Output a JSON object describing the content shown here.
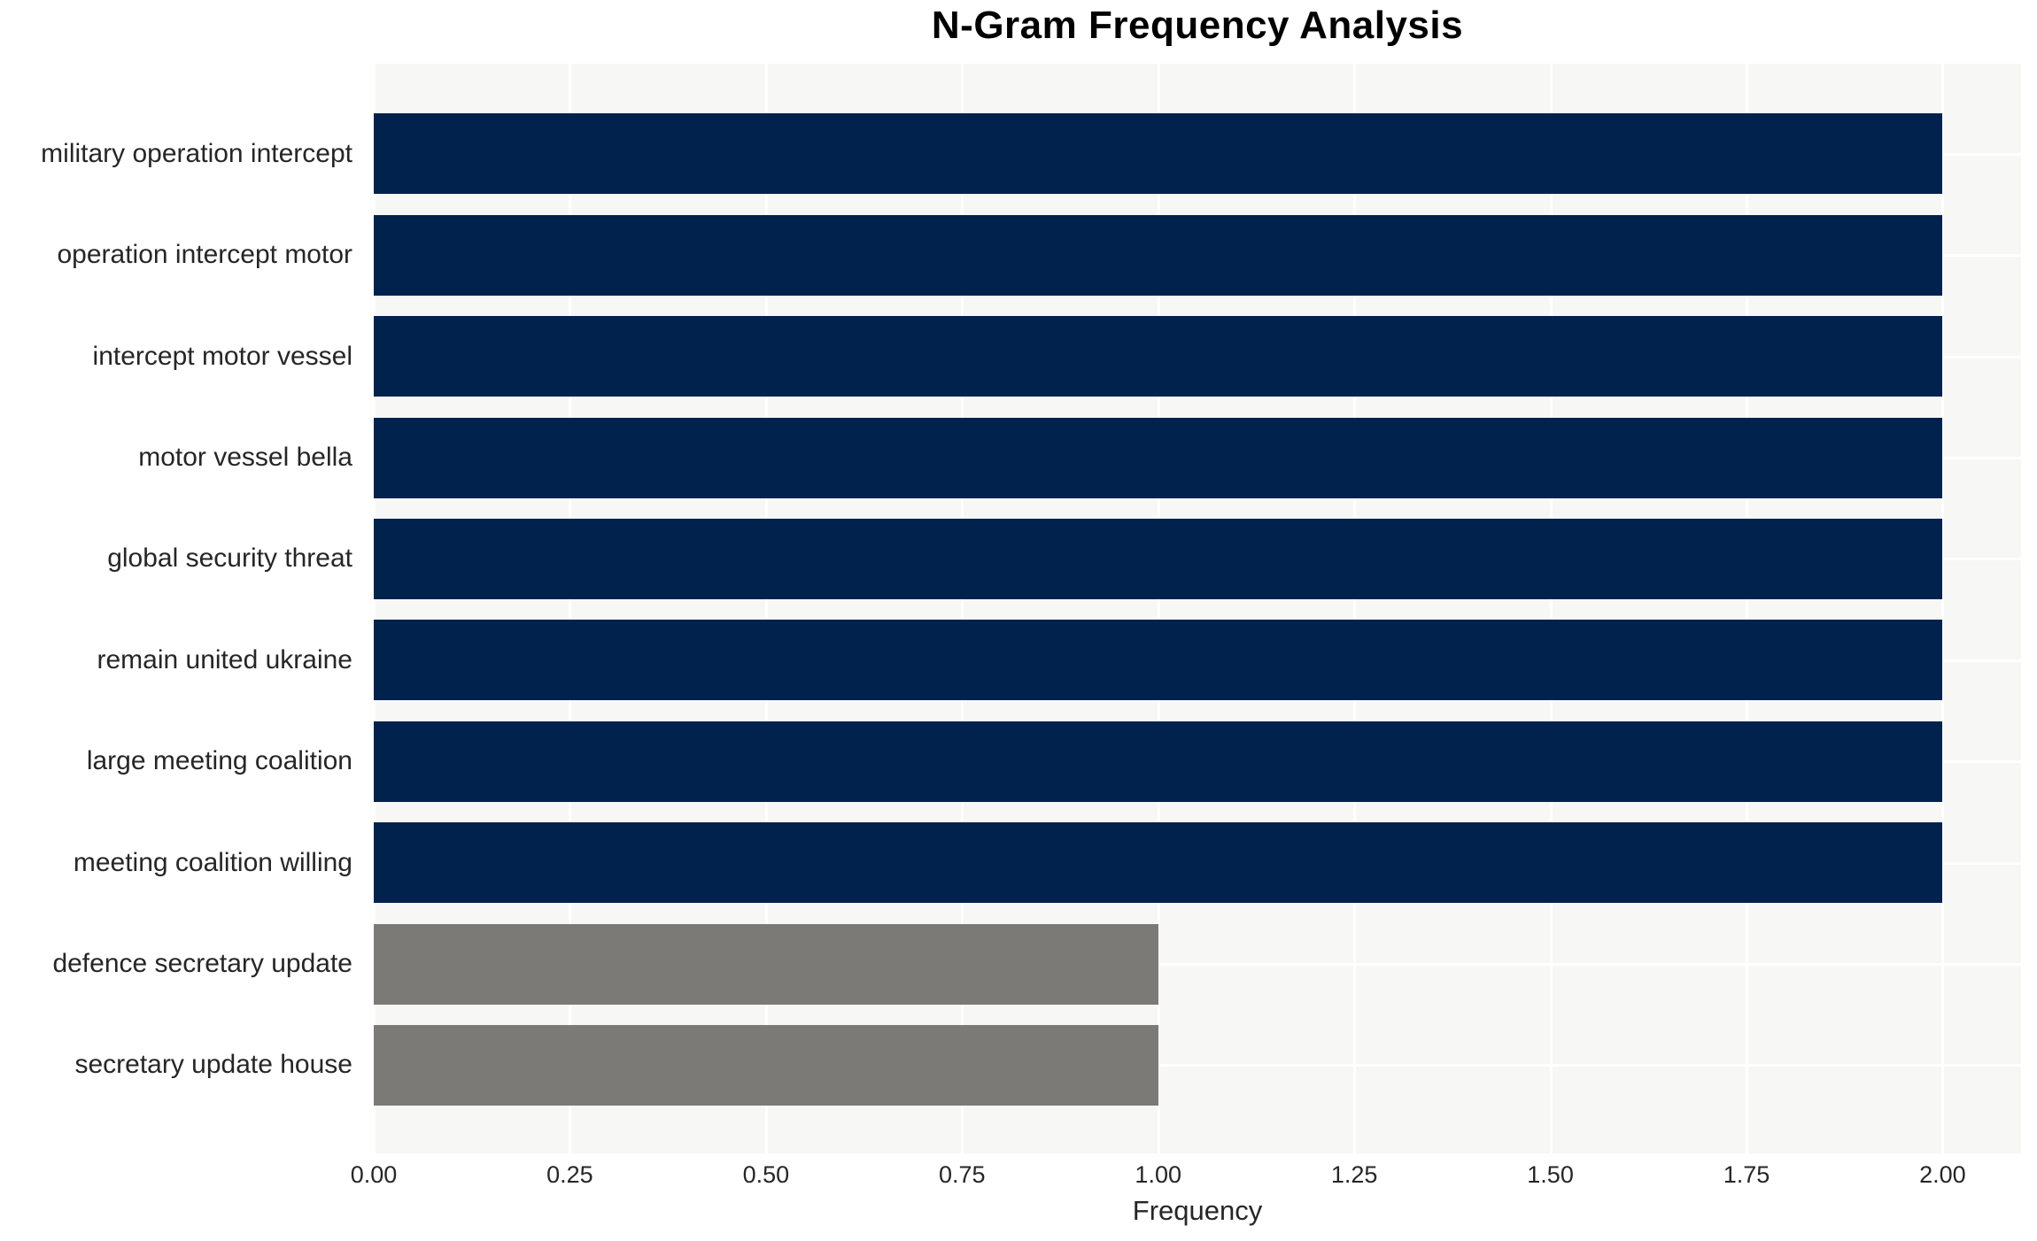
{
  "chart_data": {
    "type": "bar",
    "orientation": "horizontal",
    "title": "N-Gram Frequency Analysis",
    "xlabel": "Frequency",
    "ylabel": "",
    "xlim": [
      0,
      2.1
    ],
    "grid": true,
    "legend_position": "none",
    "xtick_labels": [
      "0.00",
      "0.25",
      "0.50",
      "0.75",
      "1.00",
      "1.25",
      "1.50",
      "1.75",
      "2.00"
    ],
    "xtick_values": [
      0,
      0.25,
      0.5,
      0.75,
      1.0,
      1.25,
      1.5,
      1.75,
      2.0
    ],
    "categories": [
      "military operation intercept",
      "operation intercept motor",
      "intercept motor vessel",
      "motor vessel bella",
      "global security threat",
      "remain united ukraine",
      "large meeting coalition",
      "meeting coalition willing",
      "defence secretary update",
      "secretary update house"
    ],
    "values": [
      2,
      2,
      2,
      2,
      2,
      2,
      2,
      2,
      1,
      1
    ],
    "bar_colors": [
      "#01224d",
      "#01224d",
      "#01224d",
      "#01224d",
      "#01224d",
      "#01224d",
      "#01224d",
      "#01224d",
      "#7b7a77",
      "#7b7a77"
    ],
    "colors": {
      "bar_high": "#01224d",
      "bar_low": "#7b7a77",
      "plot_background": "#f7f7f6",
      "gridline": "#ffffff",
      "tick_text": "#262626",
      "title_text": "#000000"
    }
  }
}
